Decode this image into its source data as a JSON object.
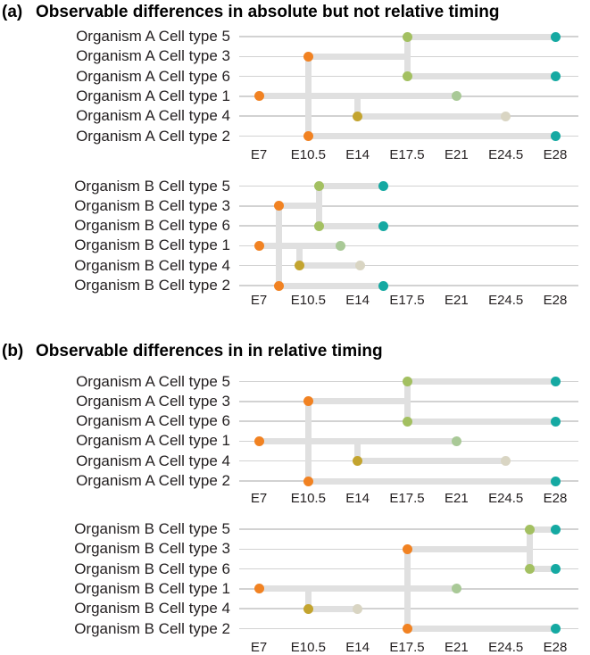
{
  "colors": {
    "orange": "#f18222",
    "olive": "#c3a42f",
    "yellow_green": "#a3c061",
    "pale_green": "#a9c997",
    "pale_beige": "#d9d5c3",
    "teal": "#15a9a2",
    "bar_gray": "#e0e0e0",
    "line_gray": "#d2d2d2",
    "text": "#231f20"
  },
  "chart_data": [
    {
      "type": "timeline",
      "panel": "(a)",
      "title": "Observable differences in absolute but not relative timing",
      "x_range": [
        7,
        28
      ],
      "x_ticks": {
        "labels": [
          "E7",
          "E10.5",
          "E14",
          "E17.5",
          "E21",
          "E24.5",
          "E28"
        ],
        "values": [
          7,
          10.5,
          14,
          17.5,
          21,
          24.5,
          28
        ]
      },
      "charts": [
        {
          "organism": "A",
          "rows": [
            {
              "label": "Organism A Cell type 5",
              "bar": [
                17.5,
                28
              ],
              "dots": [
                {
                  "x": 17.5,
                  "color": "yellow_green"
                },
                {
                  "x": 28,
                  "color": "teal"
                }
              ]
            },
            {
              "label": "Organism A Cell type 3",
              "bar": [
                10.5,
                17.5
              ],
              "dots": [
                {
                  "x": 10.5,
                  "color": "orange"
                }
              ]
            },
            {
              "label": "Organism A Cell type 6",
              "bar": [
                17.5,
                28
              ],
              "dots": [
                {
                  "x": 17.5,
                  "color": "yellow_green"
                },
                {
                  "x": 28,
                  "color": "teal"
                }
              ]
            },
            {
              "label": "Organism A Cell type 1",
              "bar": [
                7,
                21
              ],
              "dots": [
                {
                  "x": 7,
                  "color": "orange"
                },
                {
                  "x": 21,
                  "color": "pale_green"
                }
              ]
            },
            {
              "label": "Organism A Cell type 4",
              "bar": [
                14,
                24.5
              ],
              "dots": [
                {
                  "x": 14,
                  "color": "olive"
                },
                {
                  "x": 24.5,
                  "color": "pale_beige"
                }
              ]
            },
            {
              "label": "Organism A Cell type 2",
              "bar": [
                10.5,
                28
              ],
              "dots": [
                {
                  "x": 10.5,
                  "color": "orange"
                },
                {
                  "x": 28,
                  "color": "teal"
                }
              ]
            }
          ],
          "branches": [
            {
              "x": 10.5,
              "from_row": 1,
              "to_row": 5
            },
            {
              "x": 14,
              "from_row": 3,
              "to_row": 4
            },
            {
              "x": 17.5,
              "from_row": 0,
              "to_row": 2
            }
          ]
        },
        {
          "organism": "B",
          "rows": [
            {
              "label": "Organism B Cell type 5",
              "bar": [
                11.3,
                15.8
              ],
              "dots": [
                {
                  "x": 11.3,
                  "color": "yellow_green"
                },
                {
                  "x": 15.8,
                  "color": "teal"
                }
              ]
            },
            {
              "label": "Organism B Cell type 3",
              "bar": [
                8.4,
                11.3
              ],
              "dots": [
                {
                  "x": 8.4,
                  "color": "orange"
                }
              ]
            },
            {
              "label": "Organism B Cell type 6",
              "bar": [
                11.3,
                15.8
              ],
              "dots": [
                {
                  "x": 11.3,
                  "color": "yellow_green"
                },
                {
                  "x": 15.8,
                  "color": "teal"
                }
              ]
            },
            {
              "label": "Organism B Cell type 1",
              "bar": [
                7,
                12.8
              ],
              "dots": [
                {
                  "x": 7,
                  "color": "orange"
                },
                {
                  "x": 12.8,
                  "color": "pale_green"
                }
              ]
            },
            {
              "label": "Organism B Cell type 4",
              "bar": [
                9.9,
                14.2
              ],
              "dots": [
                {
                  "x": 9.9,
                  "color": "olive"
                },
                {
                  "x": 14.2,
                  "color": "pale_beige"
                }
              ]
            },
            {
              "label": "Organism B Cell type 2",
              "bar": [
                8.4,
                15.8
              ],
              "dots": [
                {
                  "x": 8.4,
                  "color": "orange"
                },
                {
                  "x": 15.8,
                  "color": "teal"
                }
              ]
            }
          ],
          "branches": [
            {
              "x": 8.4,
              "from_row": 1,
              "to_row": 5
            },
            {
              "x": 9.9,
              "from_row": 3,
              "to_row": 4
            },
            {
              "x": 11.3,
              "from_row": 0,
              "to_row": 2
            }
          ]
        }
      ]
    },
    {
      "type": "timeline",
      "panel": "(b)",
      "title": "Observable differences in in relative timing",
      "x_range": [
        7,
        28
      ],
      "x_ticks": {
        "labels": [
          "E7",
          "E10.5",
          "E14",
          "E17.5",
          "E21",
          "E24.5",
          "E28"
        ],
        "values": [
          7,
          10.5,
          14,
          17.5,
          21,
          24.5,
          28
        ]
      },
      "charts": [
        {
          "organism": "A",
          "rows": [
            {
              "label": "Organism A Cell type 5",
              "bar": [
                17.5,
                28
              ],
              "dots": [
                {
                  "x": 17.5,
                  "color": "yellow_green"
                },
                {
                  "x": 28,
                  "color": "teal"
                }
              ]
            },
            {
              "label": "Organism A Cell type 3",
              "bar": [
                10.5,
                17.5
              ],
              "dots": [
                {
                  "x": 10.5,
                  "color": "orange"
                }
              ]
            },
            {
              "label": "Organism A Cell type 6",
              "bar": [
                17.5,
                28
              ],
              "dots": [
                {
                  "x": 17.5,
                  "color": "yellow_green"
                },
                {
                  "x": 28,
                  "color": "teal"
                }
              ]
            },
            {
              "label": "Organism A Cell type 1",
              "bar": [
                7,
                21
              ],
              "dots": [
                {
                  "x": 7,
                  "color": "orange"
                },
                {
                  "x": 21,
                  "color": "pale_green"
                }
              ]
            },
            {
              "label": "Organism A Cell type 4",
              "bar": [
                14,
                24.5
              ],
              "dots": [
                {
                  "x": 14,
                  "color": "olive"
                },
                {
                  "x": 24.5,
                  "color": "pale_beige"
                }
              ]
            },
            {
              "label": "Organism A Cell type 2",
              "bar": [
                10.5,
                28
              ],
              "dots": [
                {
                  "x": 10.5,
                  "color": "orange"
                },
                {
                  "x": 28,
                  "color": "teal"
                }
              ]
            }
          ],
          "branches": [
            {
              "x": 10.5,
              "from_row": 1,
              "to_row": 5
            },
            {
              "x": 14,
              "from_row": 3,
              "to_row": 4
            },
            {
              "x": 17.5,
              "from_row": 0,
              "to_row": 2
            }
          ]
        },
        {
          "organism": "B",
          "rows": [
            {
              "label": "Organism B Cell type 5",
              "bar": [
                26.2,
                28
              ],
              "dots": [
                {
                  "x": 26.2,
                  "color": "yellow_green"
                },
                {
                  "x": 28,
                  "color": "teal"
                }
              ]
            },
            {
              "label": "Organism B Cell type 3",
              "bar": [
                17.5,
                26.2
              ],
              "dots": [
                {
                  "x": 17.5,
                  "color": "orange"
                }
              ]
            },
            {
              "label": "Organism B Cell type 6",
              "bar": [
                26.2,
                28
              ],
              "dots": [
                {
                  "x": 26.2,
                  "color": "yellow_green"
                },
                {
                  "x": 28,
                  "color": "teal"
                }
              ]
            },
            {
              "label": "Organism B Cell type 1",
              "bar": [
                7,
                21
              ],
              "dots": [
                {
                  "x": 7,
                  "color": "orange"
                },
                {
                  "x": 21,
                  "color": "pale_green"
                }
              ]
            },
            {
              "label": "Organism B Cell type 4",
              "bar": [
                10.5,
                14
              ],
              "dots": [
                {
                  "x": 10.5,
                  "color": "olive"
                },
                {
                  "x": 14,
                  "color": "pale_beige"
                }
              ]
            },
            {
              "label": "Organism B Cell type 2",
              "bar": [
                17.5,
                28
              ],
              "dots": [
                {
                  "x": 17.5,
                  "color": "orange"
                },
                {
                  "x": 28,
                  "color": "teal"
                }
              ]
            }
          ],
          "branches": [
            {
              "x": 17.5,
              "from_row": 1,
              "to_row": 5
            },
            {
              "x": 10.5,
              "from_row": 3,
              "to_row": 4
            },
            {
              "x": 26.2,
              "from_row": 0,
              "to_row": 2
            }
          ]
        }
      ]
    }
  ]
}
